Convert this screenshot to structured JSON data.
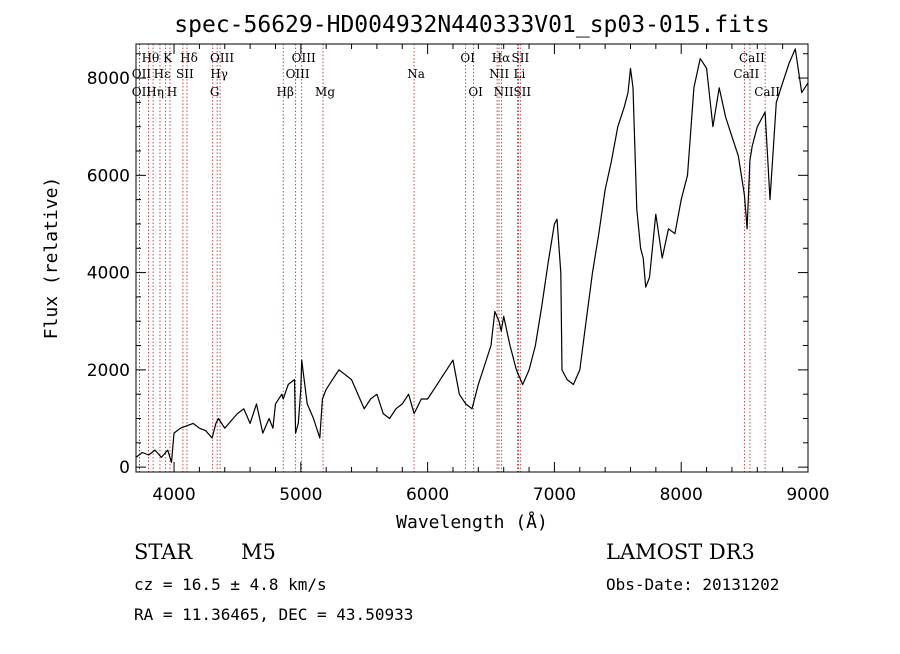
{
  "chart_data": {
    "type": "line",
    "title": "spec-56629-HD004932N440333V01_sp03-015.fits",
    "xlabel": "Wavelength (Å)",
    "ylabel": "Flux (relative)",
    "xlim": [
      3700,
      9000
    ],
    "ylim": [
      -100,
      8700
    ],
    "xticks": [
      4000,
      5000,
      6000,
      7000,
      8000,
      9000
    ],
    "yticks": [
      0,
      2000,
      4000,
      6000,
      8000
    ],
    "series": [
      {
        "name": "flux",
        "x": [
          3700,
          3750,
          3800,
          3850,
          3900,
          3950,
          3980,
          4000,
          4050,
          4100,
          4150,
          4200,
          4250,
          4300,
          4330,
          4350,
          4400,
          4450,
          4500,
          4550,
          4600,
          4650,
          4700,
          4750,
          4780,
          4800,
          4850,
          4861,
          4900,
          4950,
          4959,
          4980,
          5000,
          5007,
          5050,
          5100,
          5150,
          5170,
          5200,
          5250,
          5300,
          5350,
          5400,
          5450,
          5500,
          5550,
          5600,
          5650,
          5700,
          5750,
          5800,
          5850,
          5893,
          5950,
          6000,
          6050,
          6100,
          6150,
          6200,
          6250,
          6300,
          6350,
          6400,
          6450,
          6500,
          6530,
          6563,
          6580,
          6600,
          6650,
          6700,
          6750,
          6800,
          6850,
          6900,
          6950,
          7000,
          7020,
          7050,
          7060,
          7100,
          7150,
          7200,
          7250,
          7300,
          7350,
          7400,
          7450,
          7500,
          7550,
          7580,
          7600,
          7620,
          7650,
          7680,
          7700,
          7720,
          7750,
          7800,
          7850,
          7900,
          7950,
          8000,
          8050,
          8100,
          8150,
          8200,
          8250,
          8300,
          8350,
          8400,
          8450,
          8498,
          8520,
          8542,
          8560,
          8600,
          8662,
          8700,
          8750,
          8800,
          8850,
          8900,
          8950,
          9000
        ],
        "y": [
          200,
          300,
          250,
          350,
          200,
          350,
          100,
          700,
          800,
          850,
          900,
          800,
          750,
          600,
          900,
          1000,
          800,
          950,
          1100,
          1200,
          900,
          1300,
          700,
          1000,
          800,
          1300,
          1500,
          1400,
          1700,
          1800,
          700,
          900,
          1600,
          2200,
          1300,
          1000,
          600,
          1400,
          1600,
          1800,
          2000,
          1900,
          1800,
          1500,
          1200,
          1400,
          1500,
          1100,
          1000,
          1200,
          1300,
          1500,
          1100,
          1400,
          1400,
          1600,
          1800,
          2000,
          2200,
          1500,
          1300,
          1200,
          1700,
          2100,
          2500,
          3200,
          3000,
          2800,
          3100,
          2500,
          2000,
          1700,
          2000,
          2500,
          3300,
          4200,
          5000,
          5100,
          4000,
          2000,
          1800,
          1700,
          2000,
          3000,
          4000,
          4800,
          5700,
          6300,
          7000,
          7400,
          7700,
          8200,
          7800,
          5300,
          4500,
          4300,
          3700,
          3900,
          5200,
          4300,
          4900,
          4800,
          5500,
          6000,
          7800,
          8400,
          8200,
          7000,
          7800,
          7200,
          6800,
          6400,
          5600,
          4900,
          6300,
          6600,
          7000,
          7300,
          5500,
          7500,
          7900,
          8300,
          8600,
          7700,
          7900
        ]
      }
    ],
    "emission_lines": [
      {
        "label": "Hθ",
        "wavelength": 3798,
        "row": 1
      },
      {
        "label": "OII",
        "wavelength": 3727,
        "row": 2
      },
      {
        "label": "OII",
        "wavelength": 3727,
        "row": 3
      },
      {
        "label": "Hη",
        "wavelength": 3835,
        "row": 3
      },
      {
        "label": "Hε",
        "wavelength": 3889,
        "row": 2
      },
      {
        "label": "K",
        "wavelength": 3934,
        "row": 1
      },
      {
        "label": "H",
        "wavelength": 3968,
        "row": 3
      },
      {
        "label": "SII",
        "wavelength": 4070,
        "row": 2
      },
      {
        "label": "Hδ",
        "wavelength": 4102,
        "row": 1
      },
      {
        "label": "OIII",
        "wavelength": 4363,
        "row": 1
      },
      {
        "label": "Hγ",
        "wavelength": 4340,
        "row": 2
      },
      {
        "label": "G",
        "wavelength": 4305,
        "row": 3
      },
      {
        "label": "Hβ",
        "wavelength": 4861,
        "row": 3
      },
      {
        "label": "OIII",
        "wavelength": 5007,
        "row": 1
      },
      {
        "label": "OIII",
        "wavelength": 4959,
        "row": 2
      },
      {
        "label": "Mg",
        "wavelength": 5175,
        "row": 3
      },
      {
        "label": "Na",
        "wavelength": 5893,
        "row": 2
      },
      {
        "label": "OI",
        "wavelength": 6300,
        "row": 1
      },
      {
        "label": "OI",
        "wavelength": 6363,
        "row": 3
      },
      {
        "label": "Hα",
        "wavelength": 6563,
        "row": 1
      },
      {
        "label": "NII",
        "wavelength": 6548,
        "row": 2
      },
      {
        "label": "NII",
        "wavelength": 6584,
        "row": 3
      },
      {
        "label": "SII",
        "wavelength": 6716,
        "row": 1
      },
      {
        "label": "Li",
        "wavelength": 6708,
        "row": 2
      },
      {
        "label": "SII",
        "wavelength": 6731,
        "row": 3
      },
      {
        "label": "CaII",
        "wavelength": 8542,
        "row": 1
      },
      {
        "label": "CaII",
        "wavelength": 8498,
        "row": 2
      },
      {
        "label": "CaII",
        "wavelength": 8662,
        "row": 3
      }
    ]
  },
  "info": {
    "class_label": "STAR",
    "subclass": "M5",
    "survey": "LAMOST DR3",
    "cz": "cz = 16.5 ± 4.8 km/s",
    "obs_date": "Obs-Date: 20131202",
    "coords": "RA =  11.36465, DEC =  43.50933"
  },
  "colors": {
    "line": "#000000",
    "marker": "#b22222",
    "axis": "#000000"
  }
}
